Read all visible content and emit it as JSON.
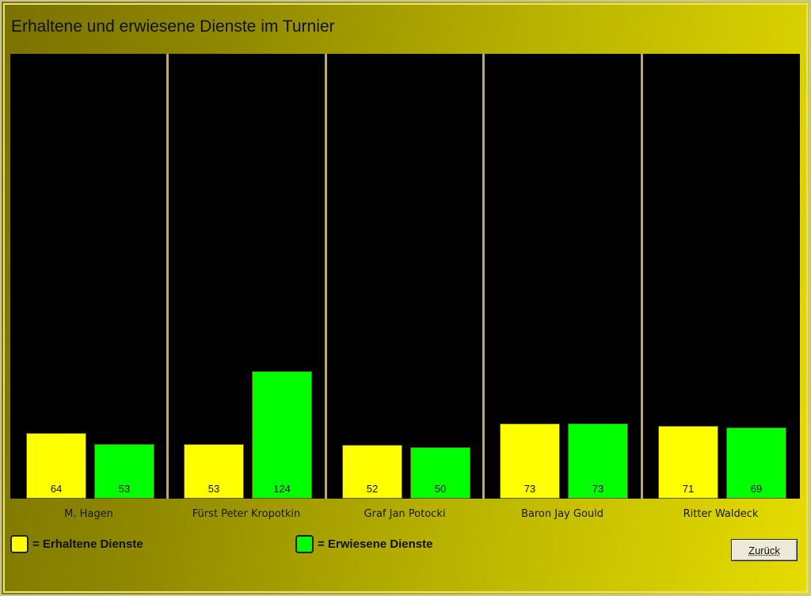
{
  "window": {
    "title": "Erhaltene und erwiesene Dienste im Turnier"
  },
  "chart_data": {
    "type": "bar",
    "title": "Erhaltene und erwiesene Dienste im Turnier",
    "categories": [
      "M. Hagen",
      "Fürst Peter Kropotkin",
      "Graf Jan Potocki",
      "Baron Jay Gould",
      "Ritter Waldeck"
    ],
    "series": [
      {
        "name": "Erhaltene Dienste",
        "color": "#ffff00",
        "values": [
          64,
          53,
          52,
          73,
          71
        ]
      },
      {
        "name": "Erwiesene Dienste",
        "color": "#00ff00",
        "values": [
          53,
          124,
          50,
          73,
          69
        ]
      }
    ],
    "grid": false,
    "legend_position": "bottom"
  },
  "legend": {
    "items": [
      {
        "label": "= Erhaltene Dienste",
        "color": "#ffff00"
      },
      {
        "label": "= Erwiesene Dienste",
        "color": "#00ff00"
      }
    ]
  },
  "buttons": {
    "back_label": "Zurück"
  },
  "colors": {
    "plot_background": "#000000",
    "divider": "#b8a878"
  }
}
